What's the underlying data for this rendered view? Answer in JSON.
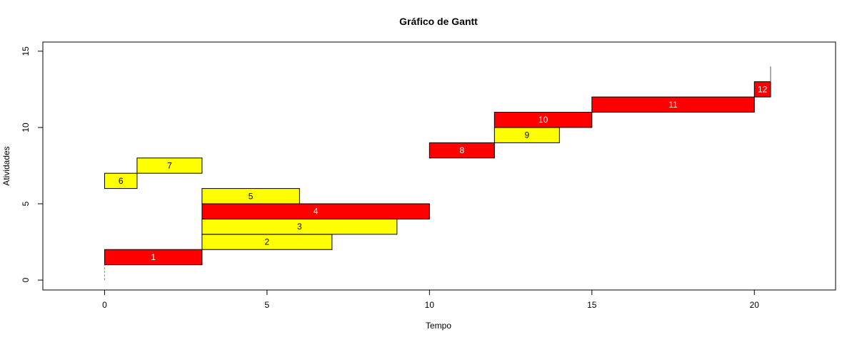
{
  "chart_data": {
    "type": "bar",
    "subtype": "gantt",
    "title": "Gráfico de Gantt",
    "xlabel": "Tempo",
    "ylabel": "Atividades",
    "xlim": [
      -1.9,
      22.5
    ],
    "ylim": [
      -0.65,
      15.6
    ],
    "x_ticks": [
      0,
      5,
      10,
      15,
      20
    ],
    "y_ticks": [
      0,
      5,
      10,
      15
    ],
    "grid": false,
    "legend": "none",
    "colors": {
      "critical": "#ff0000",
      "non_critical": "#ffff00"
    },
    "tasks": [
      {
        "label": "1",
        "start": 0,
        "end": 3,
        "y_bottom": 1,
        "y_top": 2,
        "critical": true
      },
      {
        "label": "2",
        "start": 3,
        "end": 7,
        "y_bottom": 2,
        "y_top": 3,
        "critical": false
      },
      {
        "label": "3",
        "start": 3,
        "end": 9,
        "y_bottom": 3,
        "y_top": 4,
        "critical": false
      },
      {
        "label": "4",
        "start": 3,
        "end": 10,
        "y_bottom": 4,
        "y_top": 5,
        "critical": true
      },
      {
        "label": "5",
        "start": 3,
        "end": 6,
        "y_bottom": 5,
        "y_top": 6,
        "critical": false
      },
      {
        "label": "6",
        "start": 0,
        "end": 1,
        "y_bottom": 6,
        "y_top": 7,
        "critical": false
      },
      {
        "label": "7",
        "start": 1,
        "end": 3,
        "y_bottom": 7,
        "y_top": 8,
        "critical": false
      },
      {
        "label": "8",
        "start": 10,
        "end": 12,
        "y_bottom": 8,
        "y_top": 9,
        "critical": true
      },
      {
        "label": "9",
        "start": 12,
        "end": 14,
        "y_bottom": 9,
        "y_top": 10,
        "critical": false
      },
      {
        "label": "10",
        "start": 12,
        "end": 15,
        "y_bottom": 10,
        "y_top": 11,
        "critical": true
      },
      {
        "label": "11",
        "start": 15,
        "end": 20,
        "y_bottom": 11,
        "y_top": 12,
        "critical": true
      },
      {
        "label": "12",
        "start": 20,
        "end": 20.5,
        "y_bottom": 12,
        "y_top": 13,
        "critical": true
      }
    ],
    "start_line": {
      "x": 0,
      "y_from": 0,
      "y_to": 1
    },
    "end_line": {
      "x": 20.5,
      "y_from": 13,
      "y_to": 14
    }
  }
}
